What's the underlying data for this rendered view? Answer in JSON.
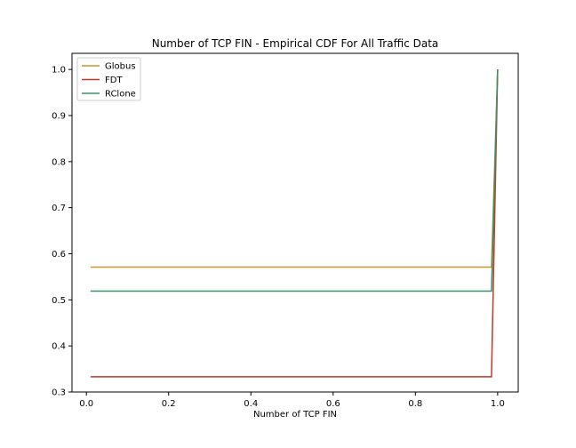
{
  "chart_data": {
    "type": "line",
    "title": "Number of TCP FIN - Empirical CDF For All Traffic Data",
    "xlabel": "Number of TCP FIN",
    "ylabel": "",
    "xlim": [
      -0.035,
      1.05
    ],
    "ylim": [
      0.3,
      1.035
    ],
    "x_ticks": [
      "0.0",
      "0.2",
      "0.4",
      "0.6",
      "0.8",
      "1.0"
    ],
    "y_ticks": [
      "0.3",
      "0.4",
      "0.5",
      "0.6",
      "0.7",
      "0.8",
      "0.9",
      "1.0"
    ],
    "grid": false,
    "legend_position": "top-left",
    "series": [
      {
        "name": "Globus",
        "color": "#c8962a",
        "x": [
          0.01,
          0.985,
          1.0
        ],
        "y": [
          0.571,
          0.571,
          1.0
        ]
      },
      {
        "name": "FDT",
        "color": "#c0392b",
        "x": [
          0.01,
          0.985,
          1.0
        ],
        "y": [
          0.333,
          0.333,
          1.0
        ]
      },
      {
        "name": "RClone",
        "color": "#3a8f6a",
        "x": [
          0.01,
          0.985,
          1.0
        ],
        "y": [
          0.519,
          0.519,
          1.0
        ]
      }
    ]
  }
}
